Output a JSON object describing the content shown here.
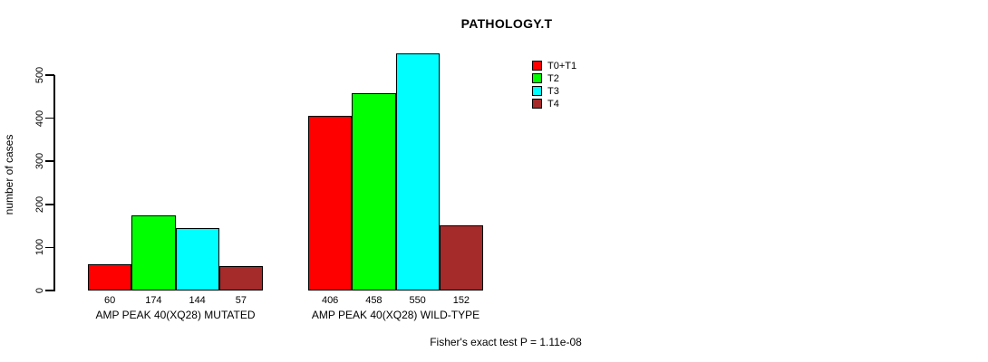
{
  "chart_data": {
    "type": "bar",
    "title": "PATHOLOGY.T",
    "xlabel": "",
    "ylabel": "number of cases",
    "ylim": [
      0,
      500
    ],
    "yticks": [
      0,
      100,
      200,
      300,
      400,
      500
    ],
    "ytick_labels_rotated": true,
    "grid": false,
    "legend_position": "top-right",
    "bar_value_labels_shown": true,
    "categories": [
      "AMP PEAK 40(XQ28) MUTATED",
      "AMP PEAK 40(XQ28) WILD-TYPE"
    ],
    "series": [
      {
        "name": "T0+T1",
        "color": "#FF0000",
        "values": [
          60,
          406
        ]
      },
      {
        "name": "T2",
        "color": "#00FF00",
        "values": [
          174,
          458
        ]
      },
      {
        "name": "T3",
        "color": "#00FFFF",
        "values": [
          144,
          550
        ]
      },
      {
        "name": "T4",
        "color": "#A52A2A",
        "values": [
          57,
          152
        ]
      }
    ],
    "annotation": "Fisher's exact test P = 1.11e-08"
  },
  "colors": {
    "background": "#FFFFFF",
    "axis": "#000000",
    "text": "#000000"
  }
}
